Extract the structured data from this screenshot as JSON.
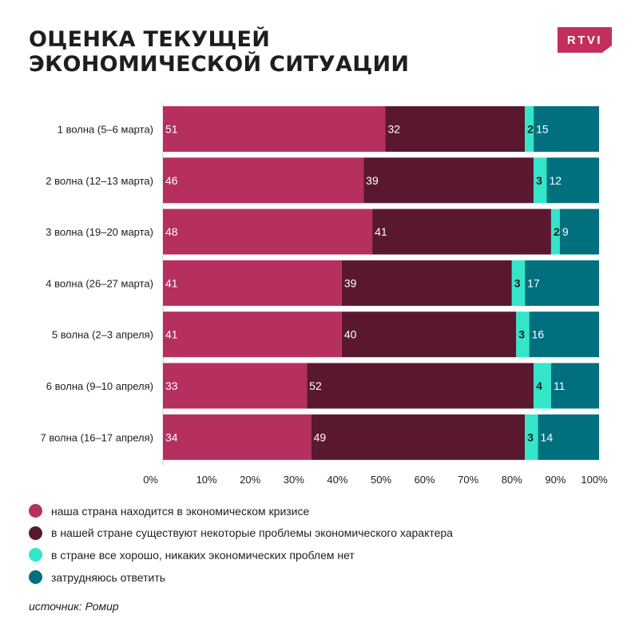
{
  "header": {
    "title_line1": "ОЦЕНКА ТЕКУЩЕЙ",
    "title_line2": "ЭКОНОМИЧЕСКОЙ СИТУАЦИИ",
    "logo_text": "RTVI"
  },
  "colors": {
    "series": [
      "#b5305e",
      "#5a1830",
      "#33e6c9",
      "#00707f"
    ],
    "logo": "#c42e5a"
  },
  "chart_data": {
    "type": "bar",
    "orientation": "horizontal",
    "stacked": true,
    "categories": [
      "1 волна (5–6 марта)",
      "2 волна (12–13 марта)",
      "3 волна (19–20 марта)",
      "4 волна (26–27 марта)",
      "5 волна (2–3 апреля)",
      "6 волна (9–10 апреля)",
      "7 волна (16–17 апреля)"
    ],
    "series": [
      {
        "name": "наша страна находится в экономическом кризисе",
        "values": [
          51,
          46,
          48,
          41,
          41,
          33,
          34
        ]
      },
      {
        "name": "в нашей стране существуют некоторые проблемы экономического характера",
        "values": [
          32,
          39,
          41,
          39,
          40,
          52,
          49
        ]
      },
      {
        "name": "в стране все хорошо, никаких экономических проблем нет",
        "values": [
          2,
          3,
          2,
          3,
          3,
          4,
          3
        ]
      },
      {
        "name": "затрудняюсь ответить",
        "values": [
          15,
          12,
          9,
          17,
          16,
          11,
          14
        ]
      }
    ],
    "x_ticks": [
      "0%",
      "10%",
      "20%",
      "30%",
      "40%",
      "50%",
      "60%",
      "70%",
      "80%",
      "90%",
      "100%"
    ],
    "xlim": [
      0,
      100
    ],
    "legend_position": "bottom",
    "grid": false
  },
  "footer": {
    "source": "источник: Ромир"
  }
}
